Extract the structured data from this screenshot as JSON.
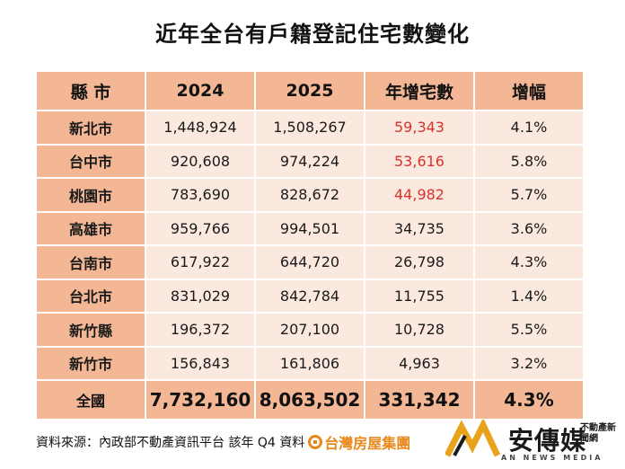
{
  "title": "近年全台有戶籍登記住宅數變化",
  "table": {
    "headers": [
      "縣 市",
      "2024",
      "2025",
      "年增宅數",
      "增幅"
    ],
    "rows": [
      {
        "city": "新北市",
        "y2024": "1,448,924",
        "y2025": "1,508,267",
        "increase": "59,343",
        "rate": "4.1%"
      },
      {
        "city": "台中市",
        "y2024": "920,608",
        "y2025": "974,224",
        "increase": "53,616",
        "rate": "5.8%"
      },
      {
        "city": "桃園市",
        "y2024": "783,690",
        "y2025": "828,672",
        "increase": "44,982",
        "rate": "5.7%"
      },
      {
        "city": "高雄市",
        "y2024": "959,766",
        "y2025": "994,501",
        "increase": "34,735",
        "rate": "3.6%"
      },
      {
        "city": "台南市",
        "y2024": "617,922",
        "y2025": "644,720",
        "increase": "26,798",
        "rate": "4.3%"
      },
      {
        "city": "台北市",
        "y2024": "831,029",
        "y2025": "842,784",
        "increase": "11,755",
        "rate": "1.4%"
      },
      {
        "city": "新竹縣",
        "y2024": "196,372",
        "y2025": "207,100",
        "increase": "10,728",
        "rate": "5.5%"
      },
      {
        "city": "新竹市",
        "y2024": "156,843",
        "y2025": "161,806",
        "increase": "4,963",
        "rate": "3.2%"
      }
    ],
    "total": {
      "city": "全國",
      "y2024": "7,732,160",
      "y2025": "8,063,502",
      "increase": "331,342",
      "rate": "4.3%"
    },
    "highlight_color": "#d8322a"
  },
  "source": {
    "text": "資料來源：內政部不動產資訊平台  該年 Q4 資料",
    "logo_text": "台灣房屋集團"
  },
  "brand": {
    "name": "安傳媒",
    "sub": "不動產新聞網",
    "english": "AN NEWS MEDIA"
  }
}
